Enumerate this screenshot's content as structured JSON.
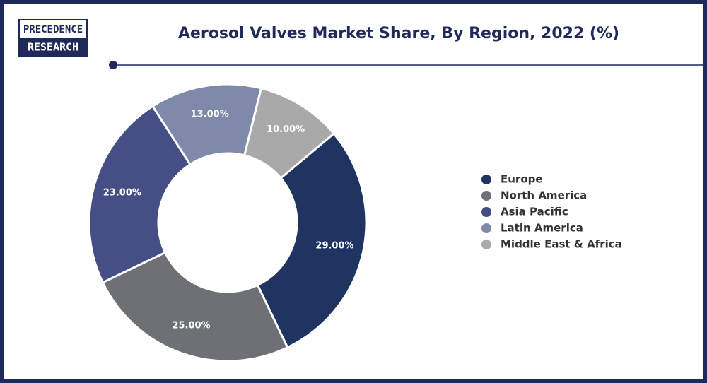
{
  "logo": [
    "PRECEDENCE",
    "RESEARCH"
  ],
  "chart_data": {
    "type": "donut",
    "title": "Aerosol Valves Market Share, By Region, 2022 (%)",
    "categories": [
      "Europe",
      "North America",
      "Asia Pacific",
      "Latin America",
      "Middle East & Africa"
    ],
    "values": [
      29,
      25,
      23,
      13,
      10
    ],
    "value_labels": [
      "29.00%",
      "25.00%",
      "23.00%",
      "13.00%",
      "10.00%"
    ],
    "colors": [
      "#1f3460",
      "#6d7075",
      "#454f86",
      "#7f89aa",
      "#a9a9a9"
    ],
    "legend": "right"
  }
}
